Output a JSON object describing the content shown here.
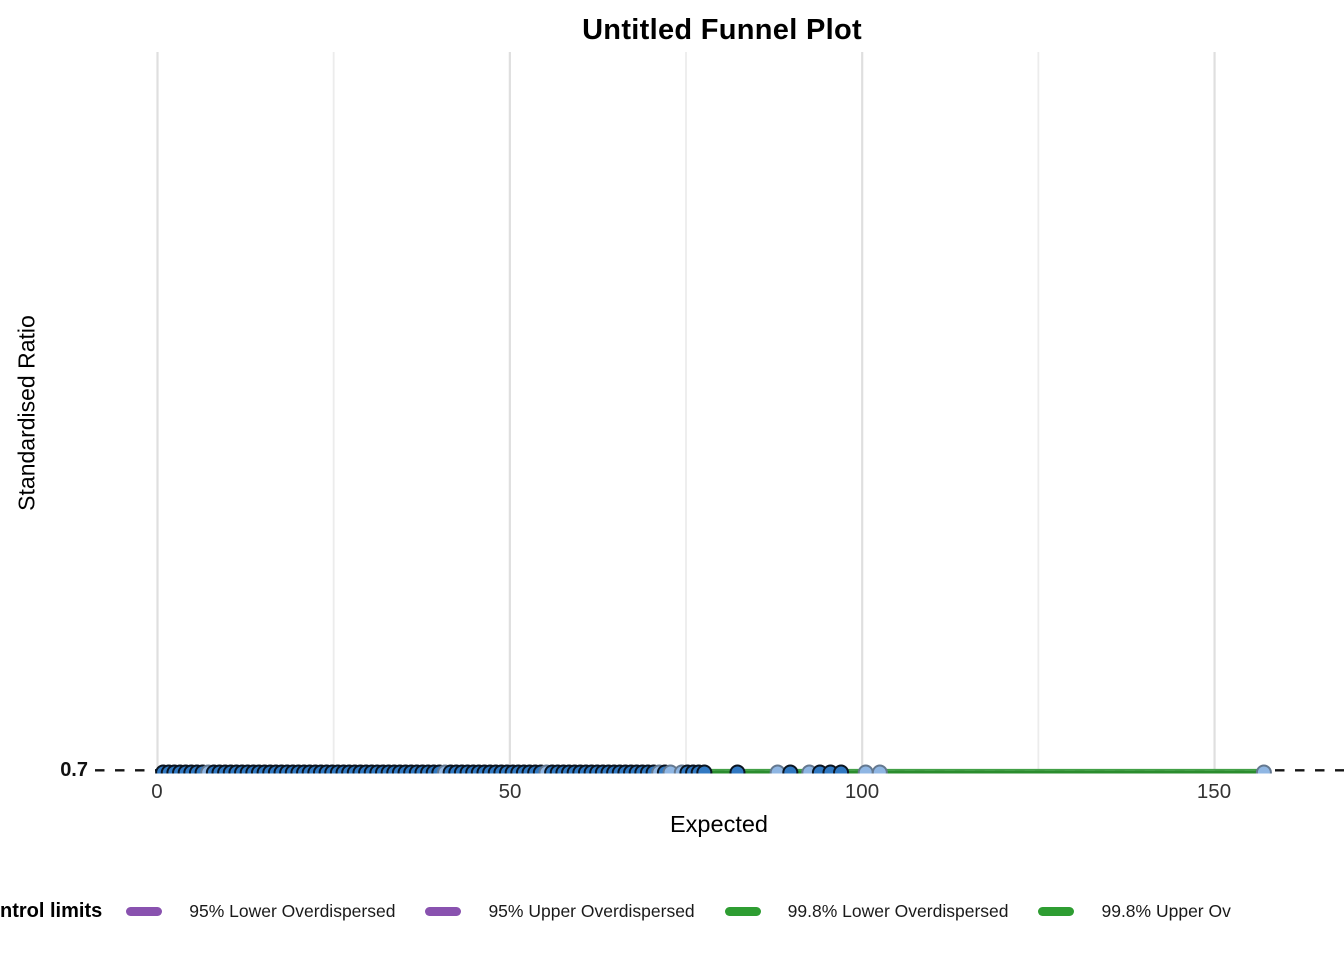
{
  "title": "Untitled Funnel Plot",
  "axes": {
    "x_label": "Expected",
    "y_label": "Standardised Ratio",
    "x_tick_labels": [
      "0",
      "50",
      "100",
      "150"
    ],
    "y_tick_labels": [
      "0.7"
    ]
  },
  "legend": {
    "title": "ntrol limits",
    "items": [
      {
        "label": "95% Lower Overdispersed",
        "color": "#8952af"
      },
      {
        "label": "95% Upper Overdispersed",
        "color": "#8952af"
      },
      {
        "label": "99.8% Lower Overdispersed",
        "color": "#2e9d32"
      },
      {
        "label": "99.8% Upper Ov",
        "color": "#2e9d32"
      }
    ]
  },
  "colors": {
    "gridline_major": "#dfdfdf",
    "gridline_minor": "#ececec",
    "target_dashed": "#161616",
    "limit_green_dark": "#2a8c2e",
    "limit_green_light": "#43a047",
    "point_dark_fill": "#3179c2",
    "point_dark_stroke": "#0a1420",
    "point_light_fill": "#8fb6e3",
    "point_light_stroke": "#64788f",
    "tick_text": "#333333"
  },
  "chart_data": {
    "type": "scatter",
    "title": "Untitled Funnel Plot",
    "xlabel": "Expected",
    "ylabel": "Standardised Ratio",
    "xlim": [
      -8.9,
      168.4
    ],
    "ylim_note": "only y break shown is 0.7; all data lie on y = 0.7 at panel bottom",
    "x_major_ticks": [
      0,
      50,
      100,
      150
    ],
    "x_minor_gridlines": [
      25,
      75,
      125
    ],
    "y_ticks": [
      0.7
    ],
    "grid": "vertical-only",
    "legend_position": "bottom",
    "target_line": {
      "y": 0.7,
      "style": "dashed",
      "color": "#161616"
    },
    "control_limit_lines": [
      {
        "name": "99.8% Lower Overdispersed",
        "y": 0.7,
        "x_start": 0.5,
        "x_end": 157,
        "color": "#2a8c2e"
      },
      {
        "name": "99.8% Upper Overdispersed",
        "y": 0.7,
        "x_start": 0.5,
        "x_end": 157,
        "color": "#43a047"
      }
    ],
    "points": {
      "y": 0.7,
      "marker": "circle",
      "dark": {
        "fill": "#3179c2",
        "stroke": "#0a1420",
        "x": [
          0.8,
          1.6,
          2.4,
          3.2,
          4,
          4.8,
          5.6,
          6.4,
          8,
          8.8,
          9.6,
          10.4,
          11.2,
          12,
          12.8,
          13.6,
          14.4,
          15.2,
          16,
          16.8,
          17.6,
          18.4,
          19.2,
          20,
          20.8,
          21.6,
          22.4,
          23.2,
          24,
          24.8,
          25.6,
          26.4,
          27.2,
          28,
          28.8,
          29.6,
          30.4,
          31.2,
          32,
          32.8,
          33.6,
          34.4,
          35.2,
          36,
          36.8,
          37.6,
          38.4,
          39.2,
          40,
          41.6,
          42.4,
          43.2,
          44,
          44.8,
          45.6,
          46.4,
          47.2,
          48,
          48.8,
          49.6,
          50.4,
          51.2,
          52,
          52.8,
          53.6,
          54.4,
          56,
          56.8,
          57.6,
          58.4,
          59.2,
          60,
          60.8,
          61.6,
          62.4,
          63.2,
          64,
          64.8,
          65.6,
          66.4,
          67.2,
          68,
          68.8,
          69.6,
          70.4,
          72,
          75.2,
          76,
          76.8,
          77.6,
          82.3,
          89.8,
          94,
          95.5,
          97
        ]
      },
      "light": {
        "fill": "#8fb6e3",
        "stroke": "#64788f",
        "x": [
          7.2,
          40.8,
          55.2,
          71.2,
          72.8,
          74.4,
          88,
          92.5,
          100.5,
          102.5,
          157
        ]
      }
    }
  }
}
